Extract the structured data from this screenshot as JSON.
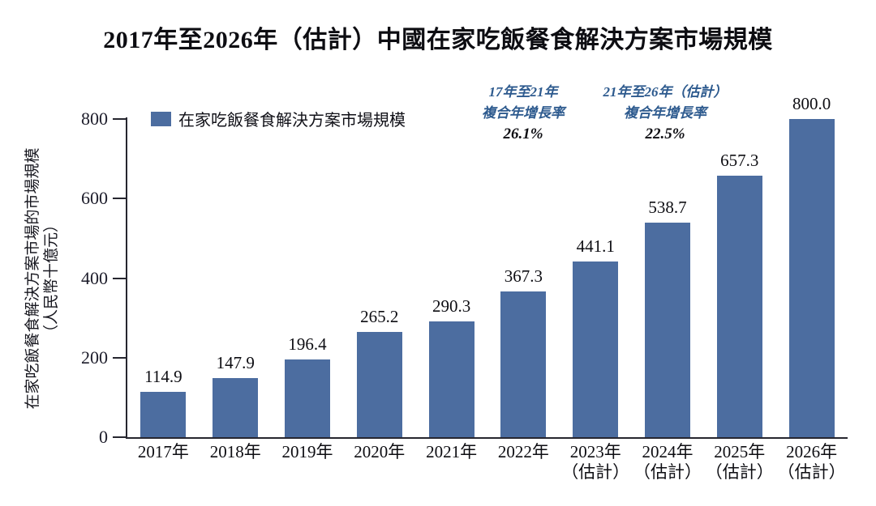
{
  "title": "2017年至2026年（估計）中國在家吃飯餐食解決方案市場規模",
  "legend": {
    "label": "在家吃飯餐食解決方案市場規模",
    "swatch_color": "#4c6da0"
  },
  "annotations": [
    {
      "line1": "17年至21年",
      "line2": "複合年增長率",
      "value": "26.1%"
    },
    {
      "line1": "21年至26年（估計）",
      "line2": "複合年增長率",
      "value": "22.5%"
    }
  ],
  "y_axis": {
    "label_line1": "在家吃飯餐食解決方案市場的市場規模",
    "label_line2": "（人民幣十億元）",
    "tick_labels": [
      "0",
      "200",
      "400",
      "600",
      "800"
    ]
  },
  "chart_data": {
    "type": "bar",
    "title": "2017年至2026年（估計）中國在家吃飯餐食解決方案市場規模",
    "categories": [
      "2017年",
      "2018年",
      "2019年",
      "2020年",
      "2021年",
      "2022年",
      "2023年\n（估計）",
      "2024年\n（估計）",
      "2025年\n（估計）",
      "2026年\n（估計）"
    ],
    "values": [
      114.9,
      147.9,
      196.4,
      265.2,
      290.3,
      367.3,
      441.1,
      538.7,
      657.3,
      800.0
    ],
    "value_labels": [
      "114.9",
      "147.9",
      "196.4",
      "265.2",
      "290.3",
      "367.3",
      "441.1",
      "538.7",
      "657.3",
      "800.0"
    ],
    "xlabel": "",
    "ylabel": "在家吃飯餐食解決方案市場的市場規模（人民幣十億元）",
    "ylim": [
      0,
      800
    ],
    "yticks": [
      0,
      200,
      400,
      600,
      800
    ],
    "grid": false,
    "legend_position": "top-left",
    "bar_color": "#4c6da0",
    "series": [
      {
        "name": "在家吃飯餐食解決方案市場規模",
        "values": [
          114.9,
          147.9,
          196.4,
          265.2,
          290.3,
          367.3,
          441.1,
          538.7,
          657.3,
          800.0
        ]
      }
    ]
  },
  "colors": {
    "bar": "#4c6da0",
    "annotation_blue": "#2d5a8e",
    "axis": "#26262f",
    "text": "#0d0d12",
    "background": "#ffffff"
  }
}
